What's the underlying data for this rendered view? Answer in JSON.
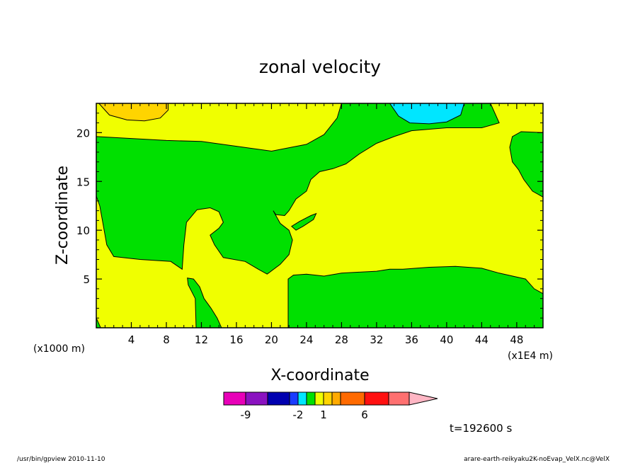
{
  "chart_data": {
    "type": "heatmap",
    "title": "zonal velocity",
    "xlabel": "X-coordinate",
    "ylabel": "Z-coordinate",
    "x_unit_left": "(x1000 m)",
    "x_unit_right": "(x1E4 m)",
    "xlim": [
      0,
      51
    ],
    "ylim": [
      0,
      23
    ],
    "xticks": [
      4,
      8,
      12,
      16,
      20,
      24,
      28,
      32,
      36,
      40,
      44,
      48
    ],
    "yticks": [
      5,
      10,
      15,
      20
    ],
    "colorbar": {
      "colors": [
        "#e800b8",
        "#8a12c0",
        "#0000b0",
        "#1a3cff",
        "#00e6ff",
        "#00e000",
        "#f0ff00",
        "#ffd400",
        "#ffaa00",
        "#ff6a00",
        "#ff1010",
        "#ff7070",
        "#ffb6c4"
      ],
      "tick_labels": [
        "-9",
        "-2",
        "1",
        "6"
      ],
      "tick_index": [
        1,
        4,
        7,
        10
      ]
    },
    "regions": [
      {
        "value": 1,
        "color": "#f0ff00",
        "polygon": [
          [
            0,
            0
          ],
          [
            51,
            0
          ],
          [
            51,
            23
          ],
          [
            0,
            23
          ]
        ]
      },
      {
        "value": 0,
        "color": "#00e000",
        "polygon": [
          [
            0,
            19.6
          ],
          [
            4,
            19.4
          ],
          [
            8,
            19.2
          ],
          [
            12,
            19.1
          ],
          [
            16,
            18.6
          ],
          [
            20,
            18.1
          ],
          [
            24,
            18.8
          ],
          [
            26,
            19.8
          ],
          [
            27.5,
            21.5
          ],
          [
            28,
            23
          ],
          [
            45,
            23
          ],
          [
            46,
            21
          ],
          [
            44,
            20.5
          ],
          [
            40,
            20.5
          ],
          [
            36,
            20.2
          ],
          [
            34,
            19.6
          ],
          [
            32,
            18.9
          ],
          [
            30,
            17.8
          ],
          [
            28.5,
            16.8
          ],
          [
            27,
            16.3
          ],
          [
            25.5,
            16.0
          ],
          [
            24.5,
            15.2
          ],
          [
            24,
            14.0
          ],
          [
            22.8,
            13.2
          ],
          [
            22,
            12.0
          ],
          [
            21.5,
            11.5
          ],
          [
            20.5,
            11.6
          ],
          [
            20.2,
            12.0
          ],
          [
            21,
            10.7
          ],
          [
            22,
            10.0
          ],
          [
            22.4,
            9.0
          ],
          [
            22,
            7.5
          ],
          [
            21,
            6.5
          ],
          [
            19.5,
            5.5
          ],
          [
            18.5,
            6.0
          ],
          [
            17,
            6.8
          ],
          [
            14.5,
            7.2
          ],
          [
            13.5,
            8.5
          ],
          [
            13,
            9.5
          ],
          [
            14,
            10.2
          ],
          [
            14.5,
            10.8
          ],
          [
            14,
            11.9
          ],
          [
            13,
            12.3
          ],
          [
            11.5,
            12.1
          ],
          [
            10.3,
            10.8
          ],
          [
            10,
            8.5
          ],
          [
            9.8,
            6.0
          ],
          [
            8.5,
            6.8
          ],
          [
            5,
            7.0
          ],
          [
            2,
            7.3
          ],
          [
            1.2,
            8.5
          ],
          [
            0.8,
            10.5
          ],
          [
            0.4,
            12.5
          ],
          [
            0,
            13.5
          ]
        ]
      },
      {
        "value": 0,
        "color": "#00e000",
        "polygon": [
          [
            21.9,
            0
          ],
          [
            21.9,
            5.0
          ],
          [
            22.5,
            5.4
          ],
          [
            24,
            5.5
          ],
          [
            26,
            5.3
          ],
          [
            28,
            5.6
          ],
          [
            30,
            5.7
          ],
          [
            32,
            5.8
          ],
          [
            33.5,
            6.0
          ],
          [
            35,
            6.0
          ],
          [
            38,
            6.2
          ],
          [
            41,
            6.3
          ],
          [
            44,
            6.1
          ],
          [
            46,
            5.6
          ],
          [
            49,
            5.0
          ],
          [
            50,
            4.0
          ],
          [
            51,
            3.5
          ],
          [
            51,
            0
          ]
        ]
      },
      {
        "value": 0,
        "color": "#00e000",
        "polygon": [
          [
            11.1,
            5.0
          ],
          [
            11.8,
            4.2
          ],
          [
            12.3,
            3.0
          ],
          [
            13.1,
            2.0
          ],
          [
            13.8,
            1.0
          ],
          [
            14.3,
            0
          ],
          [
            11.4,
            0
          ],
          [
            11.3,
            3.0
          ],
          [
            10.5,
            4.4
          ],
          [
            10.4,
            5.1
          ]
        ]
      },
      {
        "value": 0,
        "color": "#00e000",
        "polygon": [
          [
            0,
            1
          ],
          [
            0.5,
            0
          ],
          [
            0,
            0
          ]
        ]
      },
      {
        "value": 0,
        "color": "#00e000",
        "polygon": [
          [
            51,
            13.4
          ],
          [
            49.8,
            14.0
          ],
          [
            48.8,
            15.2
          ],
          [
            48.2,
            16.2
          ],
          [
            47.5,
            17.0
          ],
          [
            47.2,
            18.5
          ],
          [
            47.5,
            19.6
          ],
          [
            48.5,
            20.1
          ],
          [
            51,
            20.0
          ]
        ]
      },
      {
        "value": 0,
        "color": "#00e000",
        "polygon": [
          [
            22.3,
            10.4
          ],
          [
            23.2,
            10.9
          ],
          [
            24.5,
            11.5
          ],
          [
            25.1,
            11.7
          ],
          [
            24.8,
            11.1
          ],
          [
            23.6,
            10.4
          ],
          [
            22.8,
            10.0
          ]
        ]
      },
      {
        "value": 3,
        "color": "#ffd400",
        "polygon": [
          [
            0.3,
            23
          ],
          [
            1.5,
            21.8
          ],
          [
            3.5,
            21.3
          ],
          [
            5.5,
            21.2
          ],
          [
            7.3,
            21.5
          ],
          [
            8.2,
            22.3
          ],
          [
            8.2,
            23
          ]
        ]
      },
      {
        "value": -3,
        "color": "#00e6ff",
        "polygon": [
          [
            33.5,
            23
          ],
          [
            34.5,
            21.7
          ],
          [
            35.8,
            21.0
          ],
          [
            38,
            20.9
          ],
          [
            40,
            21.1
          ],
          [
            41.6,
            21.8
          ],
          [
            42,
            23
          ]
        ]
      }
    ]
  },
  "footer": {
    "time_label": "t=192600 s",
    "left_info": "/usr/bin/gpview  2010-11-10",
    "right_info": "arare-earth-reikyaku2K-noEvap_VelX.nc@VelX"
  }
}
